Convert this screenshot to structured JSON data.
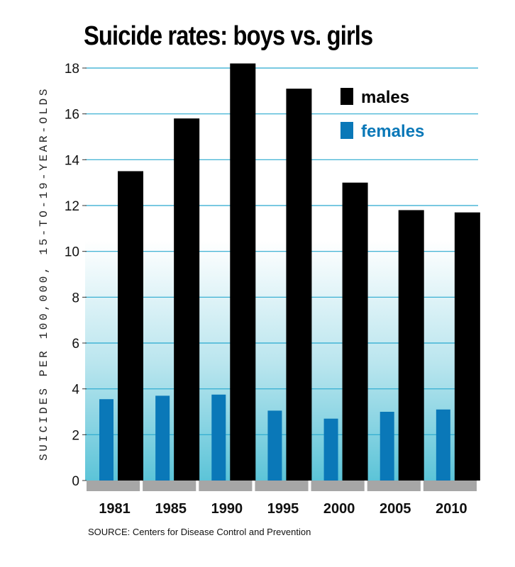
{
  "chart_data": {
    "type": "bar",
    "title": "Suicide rates: boys vs. girls",
    "ylabel": "SUICIDES PER 100,000, 15-TO-19-YEAR-OLDS",
    "xlabel": "",
    "ylim": [
      0,
      18
    ],
    "yticks": [
      0,
      2,
      4,
      6,
      8,
      10,
      12,
      14,
      16,
      18
    ],
    "categories": [
      "1981",
      "1985",
      "1990",
      "1995",
      "2000",
      "2005",
      "2010"
    ],
    "series": [
      {
        "name": "males",
        "color": "#000000",
        "values": [
          13.5,
          15.8,
          18.2,
          17.1,
          13.0,
          11.8,
          11.7
        ]
      },
      {
        "name": "females",
        "color": "#0a78b8",
        "values": [
          3.55,
          3.7,
          3.75,
          3.05,
          2.7,
          3.0,
          3.1
        ]
      }
    ],
    "legend_position": "top-right",
    "source": "SOURCE: Centers for Disease Control and Prevention"
  }
}
